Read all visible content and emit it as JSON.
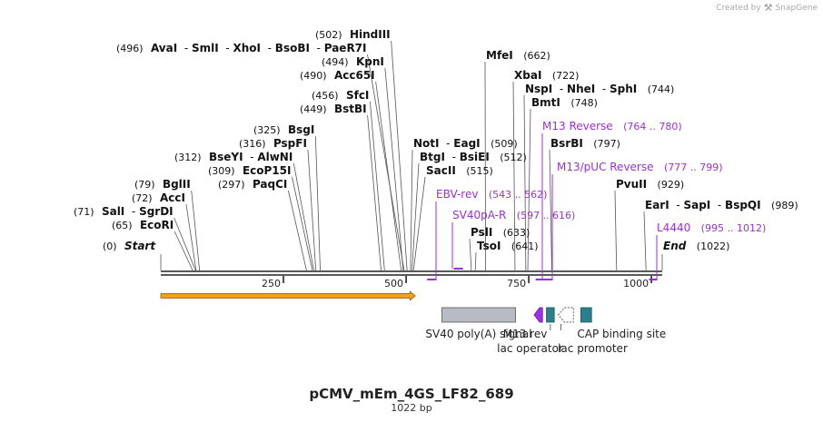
{
  "credit": {
    "prefix": "Created by",
    "brand": "SnapGene"
  },
  "map": {
    "name": "pCMV_mEm_4GS_LF82_689",
    "length_label": "1022 bp",
    "length": 1022,
    "ticks": [
      {
        "pos": 250,
        "label": "250"
      },
      {
        "pos": 500,
        "label": "500"
      },
      {
        "pos": 750,
        "label": "750"
      },
      {
        "pos": 1000,
        "label": "1000"
      }
    ]
  },
  "enzymes": [
    {
      "text": "(0)",
      "pos": 0,
      "italic_name": "Start"
    },
    {
      "text": "(65)",
      "pos": 65,
      "names": [
        "EcoRI"
      ]
    },
    {
      "text": "(71)",
      "pos": 71,
      "names": [
        "SalI",
        "SgrDI"
      ]
    },
    {
      "text": "(72)",
      "pos": 72,
      "names": [
        "AccI"
      ]
    },
    {
      "text": "(79)",
      "pos": 79,
      "names": [
        "BglII"
      ]
    },
    {
      "text": "(297)",
      "pos": 297,
      "names": [
        "PaqCI"
      ]
    },
    {
      "text": "(309)",
      "pos": 309,
      "names": [
        "EcoP15I"
      ]
    },
    {
      "text": "(312)",
      "pos": 312,
      "names": [
        "BseYI",
        "AlwNI"
      ]
    },
    {
      "text": "(316)",
      "pos": 316,
      "names": [
        "PspFI"
      ]
    },
    {
      "text": "(325)",
      "pos": 325,
      "names": [
        "BsgI"
      ]
    },
    {
      "text": "(449)",
      "pos": 449,
      "names": [
        "BstBI"
      ]
    },
    {
      "text": "(456)",
      "pos": 456,
      "names": [
        "SfcI"
      ]
    },
    {
      "text": "(490)",
      "pos": 490,
      "names": [
        "Acc65I"
      ]
    },
    {
      "text": "(494)",
      "pos": 494,
      "names": [
        "KpnI"
      ]
    },
    {
      "text": "(496)",
      "pos": 496,
      "names": [
        "AvaI",
        "SmlI",
        "XhoI",
        "BsoBI",
        "PaeR7I"
      ]
    },
    {
      "text": "(502)",
      "pos": 502,
      "names": [
        "HindIII"
      ]
    },
    {
      "text": "(509)",
      "pos": 509,
      "names": [
        "NotI",
        "EagI"
      ]
    },
    {
      "text": "(512)",
      "pos": 512,
      "names": [
        "BtgI",
        "BsiEI"
      ]
    },
    {
      "text": "(515)",
      "pos": 515,
      "names": [
        "SacII"
      ]
    },
    {
      "text": "(633)",
      "pos": 633,
      "names": [
        "PslI"
      ]
    },
    {
      "text": "(641)",
      "pos": 641,
      "names": [
        "TsoI"
      ]
    },
    {
      "text": "(662)",
      "pos": 662,
      "names": [
        "MfeI"
      ]
    },
    {
      "text": "(722)",
      "pos": 722,
      "names": [
        "XbaI"
      ]
    },
    {
      "text": "(744)",
      "pos": 744,
      "names": [
        "NspI",
        "NheI",
        "SphI"
      ]
    },
    {
      "text": "(748)",
      "pos": 748,
      "names": [
        "BmtI"
      ]
    },
    {
      "text": "(797)",
      "pos": 797,
      "names": [
        "BsrBI"
      ]
    },
    {
      "text": "(929)",
      "pos": 929,
      "names": [
        "PvuII"
      ]
    },
    {
      "text": "(989)",
      "pos": 989,
      "names": [
        "EarI",
        "SapI",
        "BspQI"
      ]
    },
    {
      "text": "(1022)",
      "pos": 1022,
      "italic_name": "End"
    }
  ],
  "primers": [
    {
      "name": "EBV-rev",
      "range": "(543 .. 562)",
      "start": 543,
      "end": 562
    },
    {
      "name": "SV40pA-R",
      "range": "(597 .. 616)",
      "start": 597,
      "end": 616
    },
    {
      "name": "M13 Reverse",
      "range": "(764 .. 780)",
      "start": 764,
      "end": 780
    },
    {
      "name": "M13/pUC Reverse",
      "range": "(777 .. 799)",
      "start": 777,
      "end": 799
    },
    {
      "name": "L4440",
      "range": "(995 .. 1012)",
      "start": 995,
      "end": 1012
    }
  ],
  "features": [
    {
      "label": "SV40 poly(A) signal",
      "start": 573,
      "end": 723,
      "color": "#b7bcc4"
    },
    {
      "label": "M13 rev",
      "start": 761,
      "end": 778,
      "color": "#a030e8"
    },
    {
      "label": "lac operator",
      "start": 786,
      "end": 802,
      "color": "#2c7f8c"
    },
    {
      "label": "lac promoter",
      "start": 810,
      "end": 841,
      "color": "#ffffff"
    },
    {
      "label": "CAP binding site",
      "start": 856,
      "end": 878,
      "color": "#2c7f8c"
    }
  ],
  "orf": {
    "start": 0,
    "end": 519,
    "color": "#f0a020"
  },
  "colors": {
    "primer": "#9b30d0",
    "text": "#111111",
    "line": "#555555"
  }
}
